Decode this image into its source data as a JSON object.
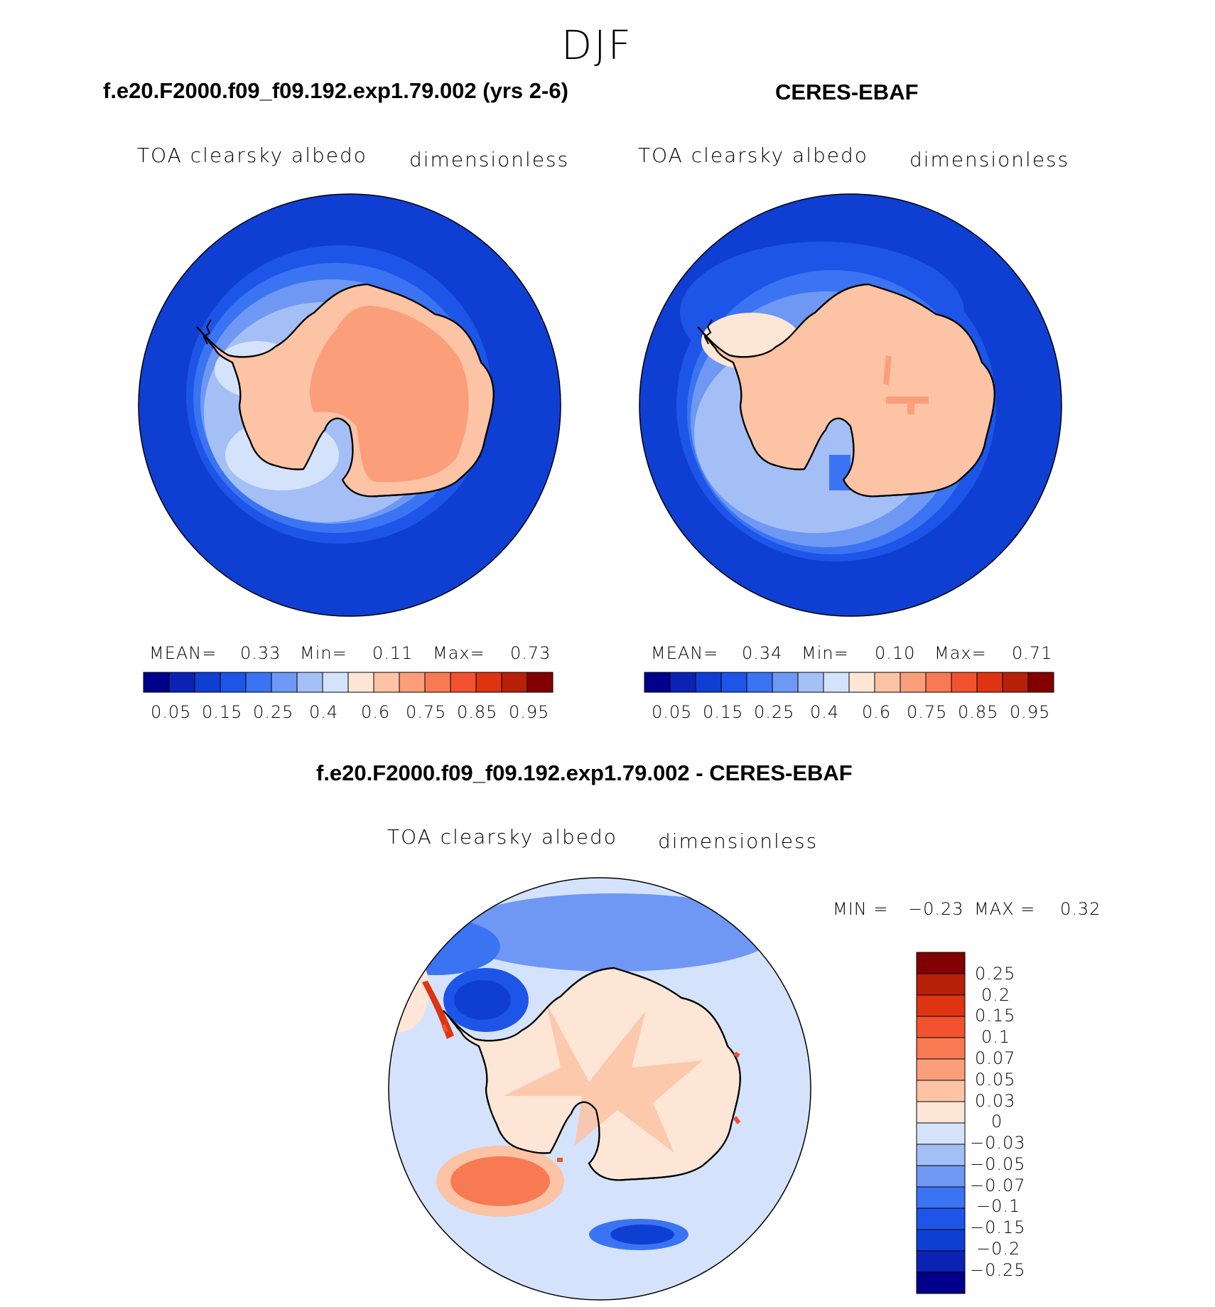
{
  "season": "DJF",
  "panels": {
    "model": {
      "title": "f.e20.F2000.f09_f09.192.exp1.79.002 (yrs 2-6)",
      "variable": "TOA clearsky albedo",
      "units": "dimensionless",
      "mean_label": "MEAN=",
      "mean": "0.33",
      "min_label": "Min=",
      "min": "0.11",
      "max_label": "Max=",
      "max": "0.73"
    },
    "obs": {
      "title": "CERES-EBAF",
      "variable": "TOA clearsky albedo",
      "units": "dimensionless",
      "mean_label": "MEAN=",
      "mean": "0.34",
      "min_label": "Min=",
      "min": "0.10",
      "max_label": "Max=",
      "max": "0.71"
    },
    "diff": {
      "title": "f.e20.F2000.f09_f09.192.exp1.79.002 - CERES-EBAF",
      "variable": "TOA clearsky albedo",
      "units": "dimensionless",
      "min_label": "MIN =",
      "min": "−0.23",
      "max_label": "MAX =",
      "max": "0.32"
    }
  },
  "colorbar_main": {
    "colors": [
      "#00008b",
      "#0a23b4",
      "#0f3ed2",
      "#1c55e8",
      "#3a74f2",
      "#6f98f4",
      "#a4bff6",
      "#d4e3fb",
      "#fde6d6",
      "#fcc3a5",
      "#fa9f7a",
      "#f87a52",
      "#f2522e",
      "#de3412",
      "#b72009",
      "#830000"
    ],
    "tick_labels": [
      "0.05",
      "0.15",
      "0.25",
      "0.4",
      "0.6",
      "0.75",
      "0.85",
      "0.95"
    ]
  },
  "colorbar_diff": {
    "colors": [
      "#830000",
      "#b72009",
      "#de3412",
      "#f2522e",
      "#f87a52",
      "#fa9f7a",
      "#fcc3a5",
      "#fde6d6",
      "#d4e3fb",
      "#a4bff6",
      "#6f98f4",
      "#3a74f2",
      "#1c55e8",
      "#0f3ed2",
      "#0a23b4",
      "#00008b"
    ],
    "tick_labels": [
      "0.25",
      "0.2",
      "0.15",
      "0.1",
      "0.07",
      "0.05",
      "0.03",
      "0",
      "−0.03",
      "−0.05",
      "−0.07",
      "−0.1",
      "−0.15",
      "−0.2",
      "−0.25"
    ]
  },
  "map_colors": {
    "ocean_deep": "#0f3ed2",
    "ocean_mid": "#1c55e8",
    "ocean_light": "#3a74f2",
    "seaice_1": "#6f98f4",
    "seaice_2": "#a4bff6",
    "seaice_3": "#d4e3fb",
    "ice_pale": "#fde6d6",
    "ice_low": "#fcc3a5",
    "ice_high": "#fa9f7a",
    "diff_zero": "#d4e3fb",
    "diff_pos_small": "#fde6d6",
    "diff_pos_mid": "#fcc3a5",
    "diff_pos_high": "#f87a52",
    "diff_pos_max": "#de3412",
    "diff_neg_mid": "#3a74f2",
    "diff_neg_high": "#0f3ed2"
  }
}
